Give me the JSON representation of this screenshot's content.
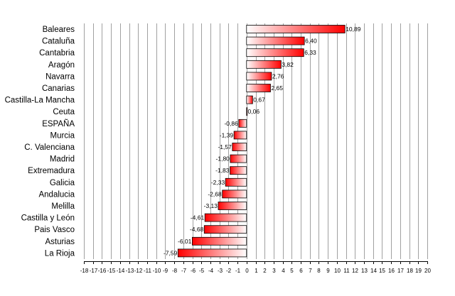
{
  "chart_data": {
    "type": "bar",
    "orientation": "horizontal",
    "title": "",
    "xlabel": "",
    "ylabel": "",
    "xlim": [
      -18,
      20
    ],
    "grid": true,
    "legend": "none",
    "bar_color": "#ff0000",
    "categories": [
      "Baleares",
      "Cataluña",
      "Cantabria",
      "Aragón",
      "Navarra",
      "Canarias",
      "Castilla-La Mancha",
      "Ceuta",
      "ESPAÑA",
      "Murcia",
      "C. Valenciana",
      "Madrid",
      "Extremadura",
      "Galicia",
      "Andalucia",
      "Melilla",
      "Castilla y León",
      "Pais Vasco",
      "Asturias",
      "La Rioja"
    ],
    "values": [
      10.89,
      6.4,
      6.33,
      3.82,
      2.76,
      2.65,
      0.67,
      0.06,
      -0.86,
      -1.39,
      -1.57,
      -1.8,
      -1.83,
      -2.33,
      -2.68,
      -3.13,
      -4.61,
      -4.68,
      -6.01,
      -7.59
    ],
    "value_labels": [
      "10,89",
      "6,40",
      "6,33",
      "3,82",
      "2,76",
      "2,65",
      "0,67",
      "0,06",
      "-0,86",
      "-1,39",
      "-1,57",
      "-1,80",
      "-1,83",
      "-2,33",
      "-2,68",
      "-3,13",
      "-4,61",
      "-4,68",
      "-6,01",
      "-7,59"
    ],
    "tick_labels": [
      "-18",
      "-17",
      "-16",
      "-15",
      "-14",
      "-13",
      "-12",
      "-11",
      "-10",
      "-9",
      "-8",
      "-7",
      "-6",
      "-5",
      "-4",
      "-3",
      "-2",
      "-1",
      "0",
      "1",
      "2",
      "3",
      "4",
      "5",
      "6",
      "7",
      "8",
      "9",
      "10",
      "11",
      "12",
      "13",
      "14",
      "15",
      "16",
      "17",
      "18",
      "19",
      "20"
    ]
  }
}
